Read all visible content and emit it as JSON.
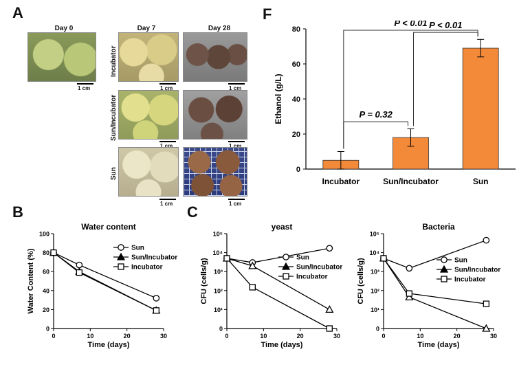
{
  "panels": {
    "a": "A",
    "b": "B",
    "c": "C",
    "f": "F"
  },
  "photos": {
    "day_labels": [
      "Day 0",
      "Day 7",
      "Day 28"
    ],
    "row_labels": [
      "Incubator",
      "Sun/Incubator",
      "Sun"
    ],
    "scale_label": "1 cm"
  },
  "chart_data": [
    {
      "id": "ethanol",
      "type": "bar",
      "categories": [
        "Incubator",
        "Sun/Incubator",
        "Sun"
      ],
      "values": [
        5,
        18,
        69
      ],
      "errors": [
        5,
        5,
        5
      ],
      "ylabel": "Ethanol (g/L)",
      "ylim": [
        0,
        80
      ],
      "yticks": [
        0,
        20,
        40,
        60,
        80
      ],
      "bar_color": "#f28a3a",
      "annotations": [
        "P = 0.32",
        "P < 0.01",
        "P < 0.01"
      ]
    },
    {
      "id": "water",
      "type": "line",
      "title": "Water content",
      "xlabel": "Time (days)",
      "ylabel": "Water Content (%)",
      "xlim": [
        0,
        30
      ],
      "ylim": [
        0,
        100
      ],
      "xticks": [
        0,
        10,
        20,
        30
      ],
      "yticks": [
        0,
        20,
        40,
        60,
        80,
        100
      ],
      "series": [
        {
          "name": "Sun",
          "marker": "circle",
          "x": [
            0,
            7,
            28
          ],
          "y": [
            80,
            67,
            32
          ]
        },
        {
          "name": "Sun/Incubator",
          "marker": "triangle",
          "x": [
            0,
            7,
            28
          ],
          "y": [
            80,
            60,
            19
          ]
        },
        {
          "name": "Incubator",
          "marker": "square",
          "x": [
            0,
            7,
            28
          ],
          "y": [
            80,
            59,
            19
          ]
        }
      ]
    },
    {
      "id": "yeast",
      "type": "line",
      "title": "yeast",
      "xlabel": "Time (days)",
      "ylabel": "CFU (cells/g)",
      "yscale": "log",
      "xlim": [
        0,
        30
      ],
      "ylim": [
        1,
        100000
      ],
      "xticks": [
        0,
        10,
        20,
        30
      ],
      "yticks": [
        {
          "v": 1,
          "t": "0"
        },
        {
          "v": 10,
          "t": "10¹"
        },
        {
          "v": 100,
          "t": "10²"
        },
        {
          "v": 1000,
          "t": "10³"
        },
        {
          "v": 10000,
          "t": "10⁴"
        },
        {
          "v": 100000,
          "t": "10⁵"
        }
      ],
      "series": [
        {
          "name": "Sun",
          "marker": "circle",
          "x": [
            0,
            7,
            28
          ],
          "y": [
            5000,
            3000,
            17000
          ]
        },
        {
          "name": "Sun/Incubator",
          "marker": "triangle",
          "x": [
            0,
            7,
            28
          ],
          "y": [
            5000,
            2000,
            10
          ]
        },
        {
          "name": "Incubator",
          "marker": "square",
          "x": [
            0,
            7,
            28
          ],
          "y": [
            5000,
            150,
            1
          ]
        }
      ]
    },
    {
      "id": "bacteria",
      "type": "line",
      "title": "Bacteria",
      "xlabel": "Time (days)",
      "ylabel": "CFU (cells/g)",
      "yscale": "log",
      "xlim": [
        0,
        30
      ],
      "ylim": [
        1,
        100000
      ],
      "xticks": [
        0,
        10,
        20,
        30
      ],
      "yticks": [
        {
          "v": 1,
          "t": "0"
        },
        {
          "v": 10,
          "t": "10¹"
        },
        {
          "v": 100,
          "t": "10²"
        },
        {
          "v": 1000,
          "t": "10³"
        },
        {
          "v": 10000,
          "t": "10⁴"
        },
        {
          "v": 100000,
          "t": "10⁵"
        }
      ],
      "series": [
        {
          "name": "Sun",
          "marker": "circle",
          "x": [
            0,
            7,
            28
          ],
          "y": [
            5000,
            1500,
            45000
          ]
        },
        {
          "name": "Sun/Incubator",
          "marker": "triangle",
          "x": [
            0,
            7,
            28
          ],
          "y": [
            5000,
            45,
            1
          ]
        },
        {
          "name": "Incubator",
          "marker": "square",
          "x": [
            0,
            7,
            28
          ],
          "y": [
            5000,
            70,
            20
          ]
        }
      ]
    }
  ]
}
